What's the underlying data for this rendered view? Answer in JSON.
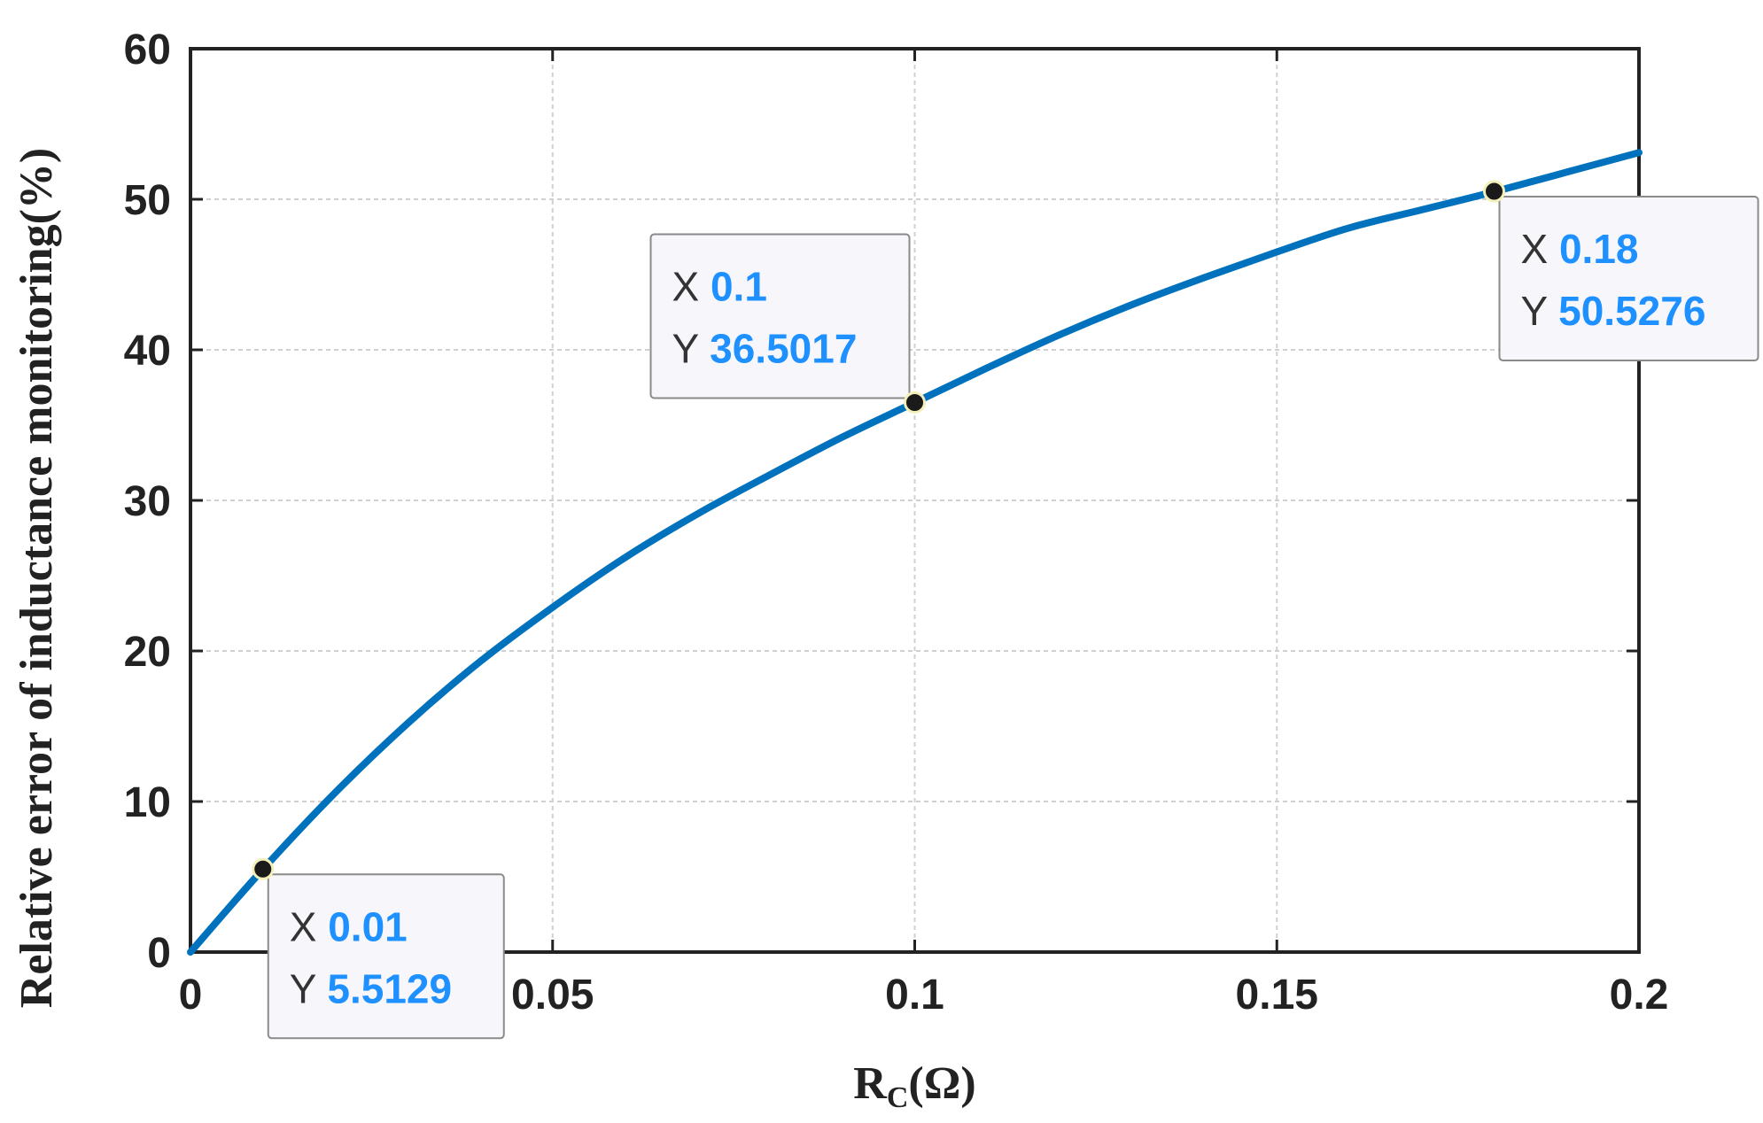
{
  "chart_data": {
    "type": "line",
    "title": "",
    "xlabel_main": "R",
    "xlabel_sub": "C",
    "xlabel_tail": "(Ω)",
    "ylabel": "Relative error of inductance monitoring(%)",
    "xlim": [
      0,
      0.2
    ],
    "ylim": [
      0,
      60
    ],
    "xticks": [
      0,
      0.05,
      0.1,
      0.15,
      0.2
    ],
    "xtick_labels": [
      "0",
      "0.05",
      "0.1",
      "0.15",
      "0.2"
    ],
    "yticks": [
      0,
      10,
      20,
      30,
      40,
      50,
      60
    ],
    "ytick_labels": [
      "0",
      "10",
      "20",
      "30",
      "40",
      "50",
      "60"
    ],
    "grid": true,
    "series": [
      {
        "color": "#0072bd",
        "x": [
          0,
          0.01,
          0.02,
          0.03,
          0.04,
          0.05,
          0.06,
          0.07,
          0.08,
          0.09,
          0.1,
          0.11,
          0.12,
          0.13,
          0.14,
          0.15,
          0.16,
          0.17,
          0.18,
          0.19,
          0.2
        ],
        "y": [
          0,
          5.5,
          10.6,
          15.2,
          19.3,
          22.9,
          26.2,
          29.1,
          31.7,
          34.2,
          36.5,
          38.8,
          41.0,
          43.0,
          44.8,
          46.5,
          48.1,
          49.3,
          50.5,
          51.8,
          53.1
        ]
      }
    ],
    "datatips": [
      {
        "x": 0.01,
        "y": 5.5129,
        "x_key": "X",
        "y_key": "Y",
        "x_text": "0.01",
        "y_text": "5.5129",
        "side": "bottom-right"
      },
      {
        "x": 0.1,
        "y": 36.5017,
        "x_key": "X",
        "y_key": "Y",
        "x_text": "0.1",
        "y_text": "36.5017",
        "side": "top-left"
      },
      {
        "x": 0.18,
        "y": 50.5276,
        "x_key": "X",
        "y_key": "Y",
        "x_text": "0.18",
        "y_text": "50.5276",
        "side": "bottom-right"
      }
    ]
  }
}
